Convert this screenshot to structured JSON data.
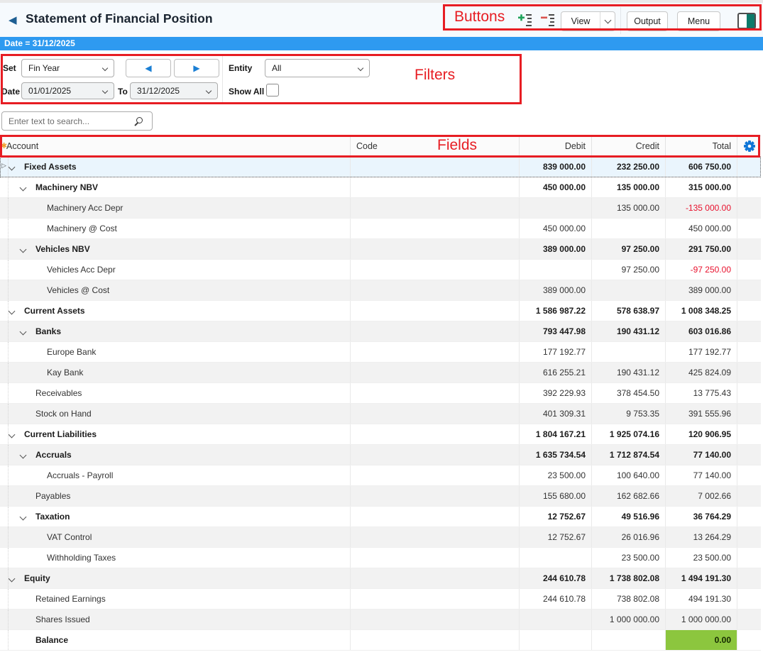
{
  "annotations": {
    "color": "#e71d23",
    "buttons": "Buttons",
    "filters": "Filters",
    "fields": "Fields"
  },
  "header": {
    "title": "Statement of Financial Position"
  },
  "toolbar": {
    "view": "View",
    "output": "Output",
    "menu": "Menu"
  },
  "date_banner": "Date = 31/12/2025",
  "filters": {
    "set_label": "Set",
    "set_value": "Fin Year",
    "prev_arrow": "◀",
    "next_arrow": "▶",
    "entity_label": "Entity",
    "entity_value": "All",
    "date_label": "Date",
    "date_from": "01/01/2025",
    "to_label": "To",
    "date_to": "31/12/2025",
    "show_all_label": "Show All",
    "show_all_checked": false
  },
  "search": {
    "placeholder": "Enter text to search..."
  },
  "grid": {
    "columns": [
      "Account",
      "Code",
      "Debit",
      "Credit",
      "Total"
    ],
    "rows": [
      {
        "label": "Fixed Assets",
        "level": 0,
        "bold": true,
        "chevron": true,
        "indicator": true,
        "selected": true,
        "debit": "839 000.00",
        "credit": "232 250.00",
        "total": "606 750.00"
      },
      {
        "label": "Machinery NBV",
        "level": 1,
        "bold": true,
        "chevron": true,
        "debit": "450 000.00",
        "credit": "135 000.00",
        "total": "315 000.00"
      },
      {
        "label": "Machinery Acc Depr",
        "level": 2,
        "bold": false,
        "chevron": false,
        "debit": "",
        "credit": "135 000.00",
        "total": "-135 000.00",
        "neg": true
      },
      {
        "label": "Machinery @ Cost",
        "level": 2,
        "bold": false,
        "chevron": false,
        "debit": "450 000.00",
        "credit": "",
        "total": "450 000.00"
      },
      {
        "label": "Vehicles NBV",
        "level": 1,
        "bold": true,
        "chevron": true,
        "debit": "389 000.00",
        "credit": "97 250.00",
        "total": "291 750.00"
      },
      {
        "label": "Vehicles Acc Depr",
        "level": 2,
        "bold": false,
        "chevron": false,
        "debit": "",
        "credit": "97 250.00",
        "total": "-97 250.00",
        "neg": true
      },
      {
        "label": "Vehicles @ Cost",
        "level": 2,
        "bold": false,
        "chevron": false,
        "debit": "389 000.00",
        "credit": "",
        "total": "389 000.00"
      },
      {
        "label": "Current Assets",
        "level": 0,
        "bold": true,
        "chevron": true,
        "debit": "1 586 987.22",
        "credit": "578 638.97",
        "total": "1 008 348.25"
      },
      {
        "label": "Banks",
        "level": 1,
        "bold": true,
        "chevron": true,
        "debit": "793 447.98",
        "credit": "190 431.12",
        "total": "603 016.86"
      },
      {
        "label": "Europe Bank",
        "level": 2,
        "bold": false,
        "chevron": false,
        "debit": "177 192.77",
        "credit": "",
        "total": "177 192.77"
      },
      {
        "label": "Kay Bank",
        "level": 2,
        "bold": false,
        "chevron": false,
        "debit": "616 255.21",
        "credit": "190 431.12",
        "total": "425 824.09"
      },
      {
        "label": "Receivables",
        "level": 1,
        "bold": false,
        "chevron": false,
        "debit": "392 229.93",
        "credit": "378 454.50",
        "total": "13 775.43"
      },
      {
        "label": "Stock on Hand",
        "level": 1,
        "bold": false,
        "chevron": false,
        "debit": "401 309.31",
        "credit": "9 753.35",
        "total": "391 555.96"
      },
      {
        "label": "Current Liabilities",
        "level": 0,
        "bold": true,
        "chevron": true,
        "debit": "1 804 167.21",
        "credit": "1 925 074.16",
        "total": "120 906.95"
      },
      {
        "label": "Accruals",
        "level": 1,
        "bold": true,
        "chevron": true,
        "debit": "1 635 734.54",
        "credit": "1 712 874.54",
        "total": "77 140.00"
      },
      {
        "label": "Accruals - Payroll",
        "level": 2,
        "bold": false,
        "chevron": false,
        "debit": "23 500.00",
        "credit": "100 640.00",
        "total": "77 140.00"
      },
      {
        "label": "Payables",
        "level": 1,
        "bold": false,
        "chevron": false,
        "debit": "155 680.00",
        "credit": "162 682.66",
        "total": "7 002.66"
      },
      {
        "label": "Taxation",
        "level": 1,
        "bold": true,
        "chevron": true,
        "debit": "12 752.67",
        "credit": "49 516.96",
        "total": "36 764.29"
      },
      {
        "label": "VAT Control",
        "level": 2,
        "bold": false,
        "chevron": false,
        "debit": "12 752.67",
        "credit": "26 016.96",
        "total": "13 264.29"
      },
      {
        "label": "Withholding Taxes",
        "level": 2,
        "bold": false,
        "chevron": false,
        "debit": "",
        "credit": "23 500.00",
        "total": "23 500.00"
      },
      {
        "label": "Equity",
        "level": 0,
        "bold": true,
        "chevron": true,
        "debit": "244 610.78",
        "credit": "1 738 802.08",
        "total": "1 494 191.30"
      },
      {
        "label": "Retained Earnings",
        "level": 1,
        "bold": false,
        "chevron": false,
        "debit": "244 610.78",
        "credit": "738 802.08",
        "total": "494 191.30"
      },
      {
        "label": "Shares Issued",
        "level": 1,
        "bold": false,
        "chevron": false,
        "debit": "",
        "credit": "1 000 000.00",
        "total": "1 000 000.00"
      },
      {
        "label": "Balance",
        "level": 1,
        "bold": true,
        "chevron": false,
        "debit": "",
        "credit": "",
        "total": "0.00",
        "green": true
      }
    ]
  },
  "colors": {
    "date_banner_bg": "#2e9af0",
    "selected_row_bg": "#eaf5fd",
    "alt_row_bg": "#f2f2f2",
    "negative_text": "#e8112d",
    "balance_ok_bg": "#8cc63e",
    "gear_icon_blue": "#1177d7",
    "annotation_red": "#e71d23"
  }
}
